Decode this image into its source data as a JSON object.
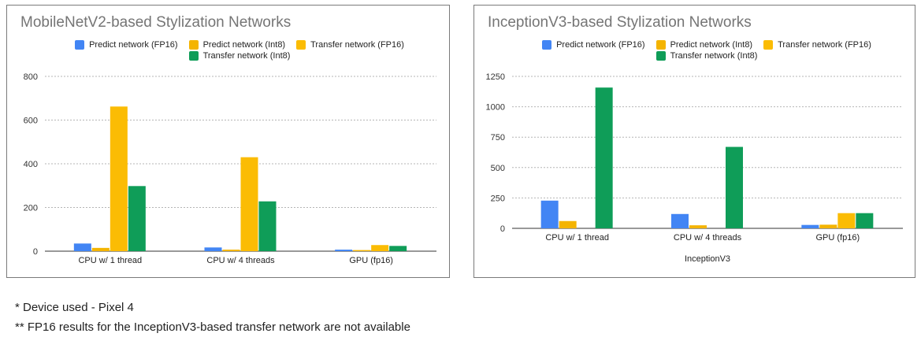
{
  "chart_data": [
    {
      "type": "bar",
      "title": "MobileNetV2-based Stylization Networks",
      "xlabel": "",
      "ylabel": "",
      "categories": [
        "CPU w/ 1 thread",
        "CPU w/ 4 threads",
        "GPU (fp16)"
      ],
      "series": [
        {
          "name": "Predict network (FP16)",
          "color": "#4285f4",
          "values": [
            35,
            17,
            7
          ]
        },
        {
          "name": "Predict network (Int8)",
          "color": "#f4b400",
          "values": [
            15,
            7,
            5
          ]
        },
        {
          "name": "Transfer network (FP16)",
          "color": "#fbbc04",
          "values": [
            662,
            430,
            28
          ]
        },
        {
          "name": "Transfer network (Int8)",
          "color": "#0f9d58",
          "values": [
            298,
            228,
            24
          ]
        }
      ],
      "ylim": [
        0,
        800
      ],
      "yticks": [
        0,
        200,
        400,
        600,
        800
      ],
      "grid": true,
      "legend": "top"
    },
    {
      "type": "bar",
      "title": "InceptionV3-based Stylization Networks",
      "xlabel": "InceptionV3",
      "ylabel": "",
      "categories": [
        "CPU w/ 1 thread",
        "CPU w/ 4 threads",
        "GPU (fp16)"
      ],
      "series": [
        {
          "name": "Predict network (FP16)",
          "color": "#4285f4",
          "values": [
            228,
            118,
            28
          ]
        },
        {
          "name": "Predict network (Int8)",
          "color": "#f4b400",
          "values": [
            60,
            25,
            30
          ]
        },
        {
          "name": "Transfer network (FP16)",
          "color": "#fbbc04",
          "values": [
            null,
            null,
            125
          ]
        },
        {
          "name": "Transfer network (Int8)",
          "color": "#0f9d58",
          "values": [
            1158,
            670,
            125
          ]
        }
      ],
      "ylim": [
        0,
        1250
      ],
      "yticks": [
        0,
        250,
        500,
        750,
        1000,
        1250
      ],
      "grid": true,
      "legend": "top"
    }
  ],
  "notes": [
    "* Device used - Pixel 4",
    "** FP16 results for the InceptionV3-based transfer network are not available"
  ]
}
